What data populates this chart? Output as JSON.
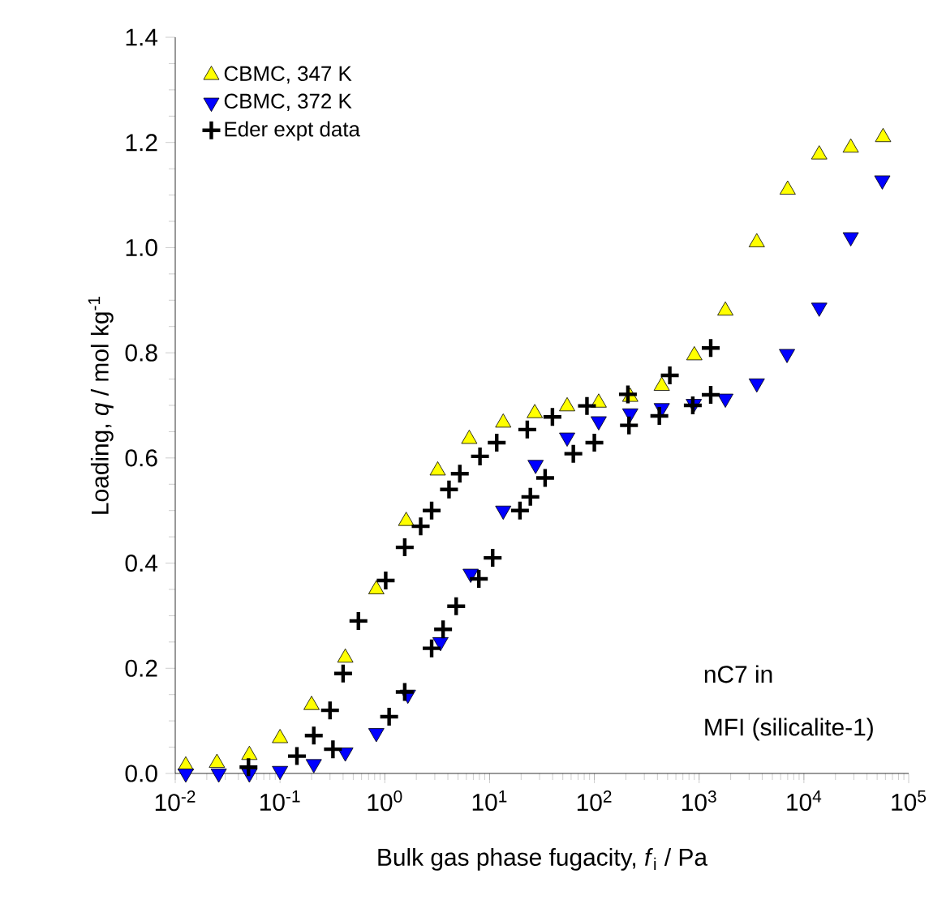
{
  "chart_data": {
    "type": "scatter",
    "xlabel": "Bulk gas phase fugacity, *f*$_{i}$ / Pa",
    "ylabel": "Loading, *q* / mol kg$^{-1}$",
    "annotations": [
      "nC7 in",
      "MFI (silicalite-1)"
    ],
    "log": "x",
    "xlim": [
      0.01,
      100000
    ],
    "ylim": [
      0,
      1.4
    ],
    "xticks": [
      {
        "value": 0.01,
        "label": "10$^{-2}$"
      },
      {
        "value": 0.1,
        "label": "10$^{-1}$"
      },
      {
        "value": 1,
        "label": "10$^{0}$"
      },
      {
        "value": 10,
        "label": "10$^{1}$"
      },
      {
        "value": 100,
        "label": "10$^{2}$"
      },
      {
        "value": 1000,
        "label": "10$^{3}$"
      },
      {
        "value": 10000,
        "label": "10$^{4}$"
      },
      {
        "value": 100000,
        "label": "10$^{5}$"
      }
    ],
    "yticks": [
      {
        "value": 0,
        "label": "0.0"
      },
      {
        "value": 0.2,
        "label": "0.2"
      },
      {
        "value": 0.4,
        "label": "0.4"
      },
      {
        "value": 0.6,
        "label": "0.6"
      },
      {
        "value": 0.8,
        "label": "0.8"
      },
      {
        "value": 1.0,
        "label": "1.0"
      },
      {
        "value": 1.2,
        "label": "1.2"
      },
      {
        "value": 1.4,
        "label": "1.4"
      }
    ],
    "grid": false,
    "legend": "top left",
    "series": [
      {
        "name": "CBMC, 347 K",
        "color": "#ffff00",
        "marker": "triangle",
        "x": [
          0.0126,
          0.025,
          0.051,
          0.1,
          0.2,
          0.42,
          0.83,
          1.6,
          3.2,
          6.4,
          13.5,
          27,
          55,
          110,
          220,
          440,
          900,
          1780,
          3550,
          7000,
          14000,
          28000,
          57000
        ],
        "values": [
          0.015,
          0.02,
          0.035,
          0.067,
          0.13,
          0.22,
          0.35,
          0.48,
          0.576,
          0.636,
          0.667,
          0.685,
          0.698,
          0.705,
          0.716,
          0.737,
          0.795,
          0.88,
          1.01,
          1.11,
          1.177,
          1.19,
          1.21
        ]
      },
      {
        "name": "CBMC, 372 K",
        "color": "#0000ff",
        "marker": "triangle-down",
        "x": [
          0.0126,
          0.026,
          0.051,
          0.1,
          0.21,
          0.42,
          0.83,
          1.66,
          3.4,
          6.6,
          13.5,
          27.5,
          55,
          110,
          220,
          440,
          890,
          1780,
          3550,
          6900,
          14000,
          28000,
          56000
        ],
        "values": [
          0.0,
          0.0,
          0.0,
          0.005,
          0.018,
          0.04,
          0.077,
          0.15,
          0.25,
          0.38,
          0.5,
          0.587,
          0.639,
          0.67,
          0.685,
          0.695,
          0.703,
          0.713,
          0.742,
          0.798,
          0.886,
          1.02,
          1.128
        ]
      },
      {
        "name": "Eder expt data",
        "color": "#000000",
        "marker": "cross",
        "x": [
          0.05,
          0.145,
          0.21,
          0.3,
          0.4,
          0.56,
          1.02,
          1.55,
          2.2,
          2.8,
          4.1,
          5.2,
          8.1,
          11.7,
          22.9,
          39.8,
          85,
          209,
          525,
          1290,
          0.32,
          1.1,
          1.55,
          2.8,
          3.6,
          4.8,
          7.9,
          10.7,
          19.5,
          24.5,
          33.9,
          63,
          100,
          214,
          417,
          870,
          1290
        ],
        "values": [
          0.012,
          0.033,
          0.072,
          0.12,
          0.19,
          0.29,
          0.367,
          0.43,
          0.47,
          0.5,
          0.54,
          0.57,
          0.603,
          0.629,
          0.654,
          0.678,
          0.699,
          0.721,
          0.757,
          0.809,
          0.046,
          0.108,
          0.155,
          0.238,
          0.274,
          0.318,
          0.37,
          0.41,
          0.5,
          0.526,
          0.562,
          0.608,
          0.629,
          0.662,
          0.68,
          0.7,
          0.72
        ]
      }
    ]
  }
}
